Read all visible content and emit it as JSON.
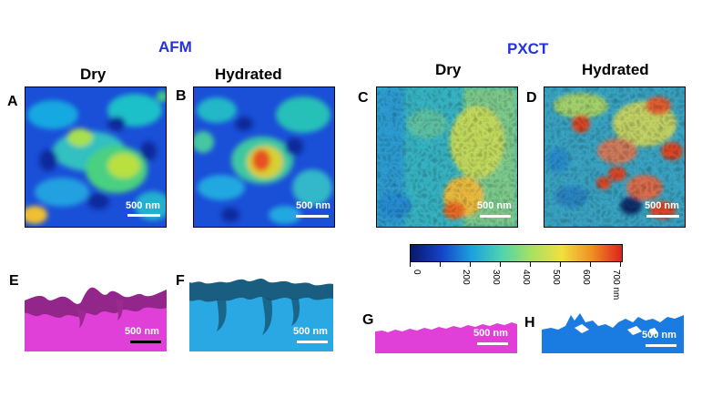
{
  "sections": {
    "afm": "AFM",
    "pxct": "PXCT"
  },
  "columns": {
    "afm_dry": "Dry",
    "afm_hydrated": "Hydrated",
    "pxct_dry": "Dry",
    "pxct_hydrated": "Hydrated"
  },
  "panels": {
    "A": "A",
    "B": "B",
    "C": "C",
    "D": "D",
    "E": "E",
    "F": "F",
    "G": "G",
    "H": "H"
  },
  "scale_bar_label": "500 nm",
  "colorbar": {
    "ticks": [
      "0",
      "200",
      "300",
      "400",
      "500",
      "600",
      "700 nm"
    ],
    "colors": [
      "#08186e",
      "#1540c8",
      "#1aa0e0",
      "#4cd4b0",
      "#a8e060",
      "#f0e040",
      "#f09020",
      "#e02020"
    ]
  },
  "colors": {
    "magenta": "#e040d8",
    "magenta_dark": "#7a1e70",
    "cyan": "#2aa8e4",
    "cyan_dark": "#16506e",
    "blue": "#1a7be0"
  }
}
